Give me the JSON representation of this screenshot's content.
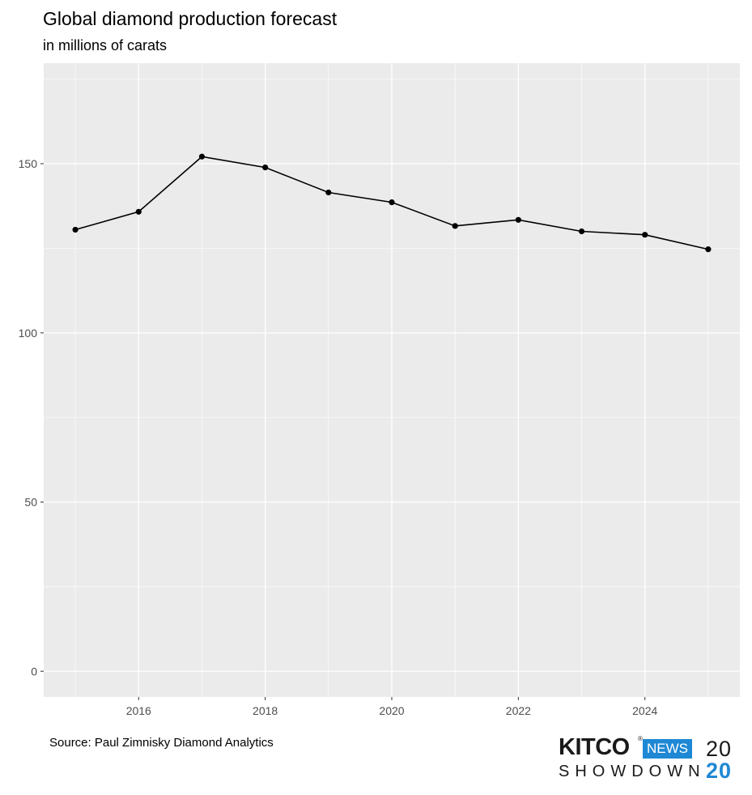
{
  "chart_data": {
    "type": "line",
    "title": "Global diamond production forecast",
    "subtitle": "in millions of carats",
    "xlabel": "",
    "ylabel": "",
    "x": [
      2015,
      2016,
      2017,
      2018,
      2019,
      2020,
      2021,
      2022,
      2023,
      2024,
      2025
    ],
    "values": [
      130.5,
      135.8,
      152.1,
      148.9,
      141.5,
      138.6,
      131.6,
      133.4,
      130.0,
      129.0,
      124.7
    ],
    "xlim": [
      2014.5,
      2025.5
    ],
    "ylim": [
      -7.6,
      179.7
    ],
    "x_ticks": [
      2016,
      2018,
      2020,
      2022,
      2024
    ],
    "y_ticks": [
      0,
      50,
      100,
      150
    ],
    "x_tick_labels": [
      "2016",
      "2018",
      "2020",
      "2022",
      "2024"
    ],
    "y_tick_labels": [
      "0",
      "50",
      "100",
      "150"
    ],
    "grid": true,
    "legend": "none",
    "colors": {
      "panel": "#ebebeb",
      "grid": "#ffffff",
      "line": "#000000",
      "tick_text": "#4d4d4d"
    }
  },
  "footer": {
    "source": "Source: Paul Zimnisky Diamond Analytics"
  },
  "logo": {
    "kitco": "KITCO",
    "reg": "®",
    "news": "NEWS",
    "year_top": "20",
    "showdown": "SHOWDOWN",
    "year_bottom": "20",
    "accent": "#1e88d4"
  }
}
